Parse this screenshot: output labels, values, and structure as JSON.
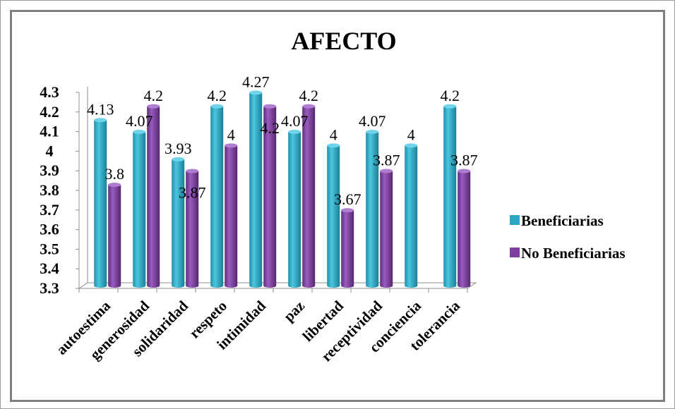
{
  "chart_data": {
    "type": "bar",
    "title": "AFECTO",
    "categories": [
      "autoestima",
      "generosidad",
      "solidaridad",
      "respeto",
      "intimidad",
      "paz",
      "libertad",
      "receptividad",
      "conciencia",
      "tolerancia"
    ],
    "series": [
      {
        "name": "Beneficiarias",
        "values": [
          4.13,
          4.07,
          3.93,
          4.2,
          4.27,
          4.07,
          4,
          4.07,
          4,
          4.2
        ],
        "labels": [
          "4.13",
          "4.07",
          "3.93",
          "4.2",
          "4.27",
          "4.07",
          "4",
          "4.07",
          "4",
          "4.2"
        ],
        "color": "#2AA8C4"
      },
      {
        "name": "No Beneficiarias",
        "values": [
          3.8,
          4.2,
          3.87,
          4,
          4.2,
          4.2,
          3.67,
          3.87,
          null,
          3.87
        ],
        "labels": [
          "3.8",
          "4.2",
          "3.87",
          "4",
          "4.2",
          "4.2",
          "3.67",
          "3.87",
          "",
          "3.87"
        ],
        "color": "#7D3F9E"
      }
    ],
    "yticks": [
      "3.3",
      "3.4",
      "3.5",
      "3.6",
      "3.7",
      "3.8",
      "3.9",
      "4",
      "4.1",
      "4.2",
      "4.3"
    ],
    "ylim": [
      3.3,
      4.3
    ],
    "legend_position": "right",
    "style": "3d-cylinder"
  }
}
